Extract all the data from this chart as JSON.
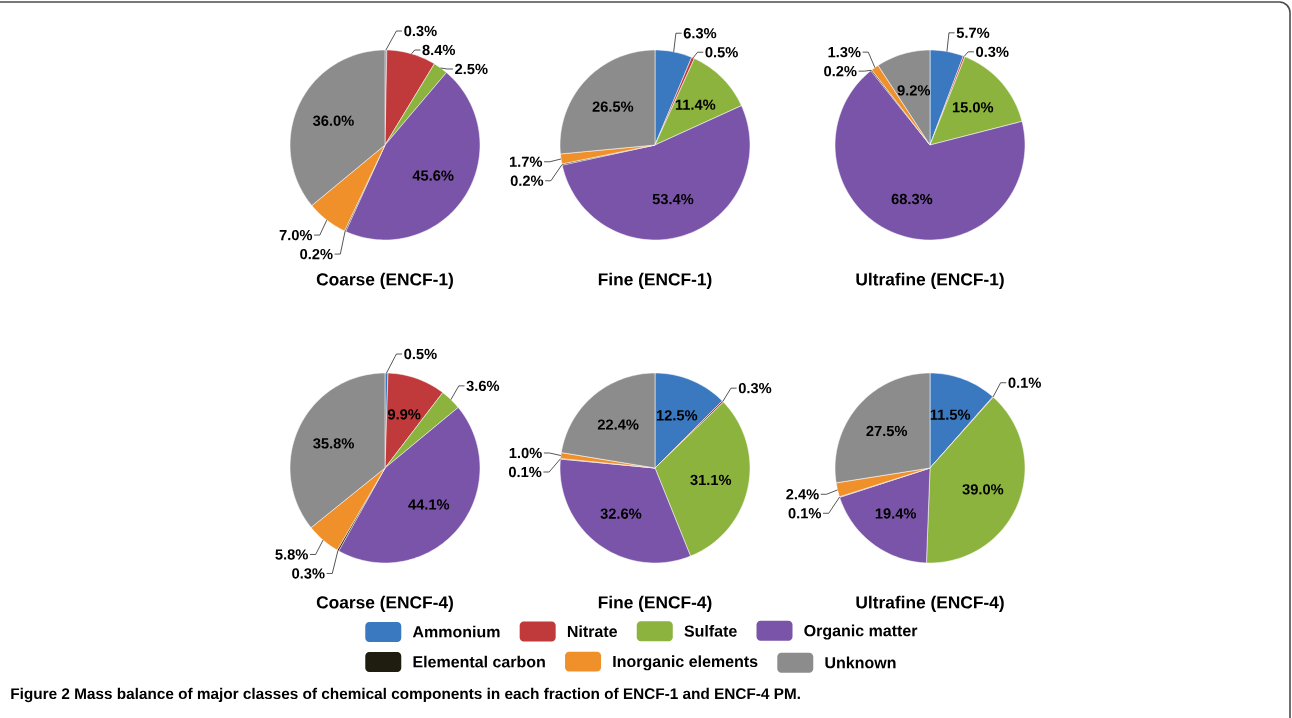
{
  "chart_data": [
    {
      "type": "pie",
      "title": "Coarse (ENCF-1)",
      "categories": [
        "Ammonium",
        "Nitrate",
        "Sulfate",
        "Organic matter",
        "Elemental carbon",
        "Inorganic elements",
        "Unknown"
      ],
      "values": [
        0.3,
        8.4,
        2.5,
        45.6,
        0.2,
        7.0,
        36.0
      ],
      "value_labels": [
        "0.3%",
        "8.4%",
        "2.5%",
        "45.6%",
        "0.2%",
        "7.0%",
        "36.0%"
      ],
      "colors": [
        "#3a78c0",
        "#c0393b",
        "#8cb33e",
        "#7a54a8",
        "#1f1d10",
        "#f0902a",
        "#8c8c8c"
      ],
      "legend": "bottom",
      "annotations": [
        "Figure 2 Mass balance of major classes of chemical components in each fraction of ENCF-1 and ENCF-4 PM."
      ]
    },
    {
      "type": "pie",
      "title": "Fine (ENCF-1)",
      "values": [
        6.3,
        0.5,
        11.4,
        53.4,
        0.2,
        1.7,
        26.5
      ],
      "value_labels": [
        "6.3%",
        "0.5%",
        "11.4%",
        "53.4%",
        "0.2%",
        "1.7%",
        "26.5%"
      ],
      "colors": [
        "#3a78c0",
        "#c0393b",
        "#8cb33e",
        "#7a54a8",
        "#1f1d10",
        "#f0902a",
        "#8c8c8c"
      ]
    },
    {
      "type": "pie",
      "title": "Ultrafine (ENCF-1)",
      "values": [
        5.7,
        0.3,
        15.0,
        68.3,
        0.2,
        1.3,
        9.2
      ],
      "value_labels": [
        "5.7%",
        "0.3%",
        "15.0%",
        "68.3%",
        "0.2%",
        "1.3%",
        "9.2%"
      ],
      "colors": [
        "#3a78c0",
        "#c0393b",
        "#8cb33e",
        "#7a54a8",
        "#1f1d10",
        "#f0902a",
        "#8c8c8c"
      ]
    },
    {
      "type": "pie",
      "title": "Coarse (ENCF-4)",
      "values": [
        0.5,
        9.9,
        3.6,
        44.1,
        0.3,
        5.8,
        35.8
      ],
      "value_labels": [
        "0.5%",
        "9.9%",
        "3.6%",
        "44.1%",
        "0.3%",
        "5.8%",
        "35.8%"
      ],
      "colors": [
        "#3a78c0",
        "#c0393b",
        "#8cb33e",
        "#7a54a8",
        "#1f1d10",
        "#f0902a",
        "#8c8c8c"
      ]
    },
    {
      "type": "pie",
      "title": "Fine (ENCF-4)",
      "values": [
        12.5,
        0.3,
        31.1,
        32.6,
        0.1,
        1.0,
        22.4
      ],
      "value_labels": [
        "12.5%",
        "0.3%",
        "31.1%",
        "32.6%",
        "0.1%",
        "1.0%",
        "22.4%"
      ],
      "colors": [
        "#3a78c0",
        "#c0393b",
        "#8cb33e",
        "#7a54a8",
        "#1f1d10",
        "#f0902a",
        "#8c8c8c"
      ]
    },
    {
      "type": "pie",
      "title": "Ultrafine (ENCF-4)",
      "values": [
        11.5,
        0.1,
        39.0,
        19.4,
        0.1,
        2.4,
        27.5
      ],
      "value_labels": [
        "11.5%",
        "0.1%",
        "39.0%",
        "19.4%",
        "0.1%",
        "2.4%",
        "27.5%"
      ],
      "colors": [
        "#3a78c0",
        "#c0393b",
        "#8cb33e",
        "#7a54a8",
        "#1f1d10",
        "#f0902a",
        "#8c8c8c"
      ]
    }
  ]
}
